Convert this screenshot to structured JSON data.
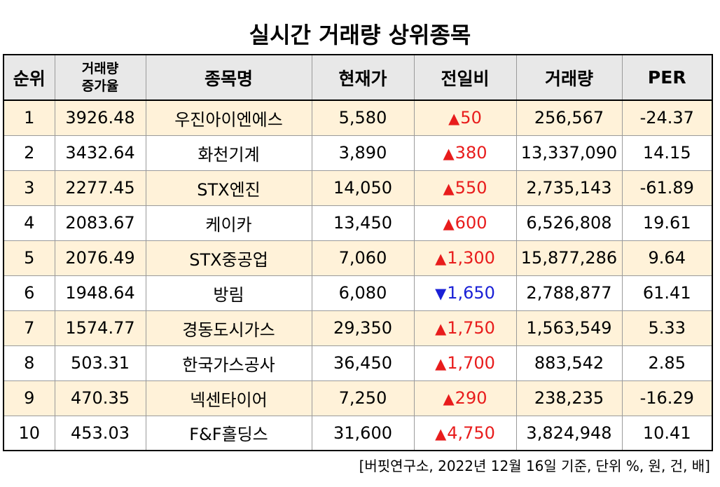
{
  "title": "실시간 거래량 상위종목",
  "headers": {
    "rank": "순위",
    "vol_increase_1": "거래량",
    "vol_increase_2": "증가율",
    "name": "종목명",
    "price": "현재가",
    "change": "전일비",
    "volume": "거래량",
    "per": "PER"
  },
  "rows": [
    {
      "rank": "1",
      "increase": "3926.48",
      "name": "우진아이엔에스",
      "price": "5,580",
      "dir": "up",
      "arrow": "▲",
      "change": "50",
      "volume": "256,567",
      "per": "-24.37"
    },
    {
      "rank": "2",
      "increase": "3432.64",
      "name": "화천기계",
      "price": "3,890",
      "dir": "up",
      "arrow": "▲",
      "change": "380",
      "volume": "13,337,090",
      "per": "14.15"
    },
    {
      "rank": "3",
      "increase": "2277.45",
      "name": "STX엔진",
      "price": "14,050",
      "dir": "up",
      "arrow": "▲",
      "change": "550",
      "volume": "2,735,143",
      "per": "-61.89"
    },
    {
      "rank": "4",
      "increase": "2083.67",
      "name": "케이카",
      "price": "13,450",
      "dir": "up",
      "arrow": "▲",
      "change": "600",
      "volume": "6,526,808",
      "per": "19.61"
    },
    {
      "rank": "5",
      "increase": "2076.49",
      "name": "STX중공업",
      "price": "7,060",
      "dir": "up",
      "arrow": "▲",
      "change": "1,300",
      "volume": "15,877,286",
      "per": "9.64"
    },
    {
      "rank": "6",
      "increase": "1948.64",
      "name": "방림",
      "price": "6,080",
      "dir": "down",
      "arrow": "▼",
      "change": "1,650",
      "volume": "2,788,877",
      "per": "61.41"
    },
    {
      "rank": "7",
      "increase": "1574.77",
      "name": "경동도시가스",
      "price": "29,350",
      "dir": "up",
      "arrow": "▲",
      "change": "1,750",
      "volume": "1,563,549",
      "per": "5.33"
    },
    {
      "rank": "8",
      "increase": "503.31",
      "name": "한국가스공사",
      "price": "36,450",
      "dir": "up",
      "arrow": "▲",
      "change": "1,700",
      "volume": "883,542",
      "per": "2.85"
    },
    {
      "rank": "9",
      "increase": "470.35",
      "name": "넥센타이어",
      "price": "7,250",
      "dir": "up",
      "arrow": "▲",
      "change": "290",
      "volume": "238,235",
      "per": "-16.29"
    },
    {
      "rank": "10",
      "increase": "453.03",
      "name": "F&F홀딩스",
      "price": "31,600",
      "dir": "up",
      "arrow": "▲",
      "change": "4,750",
      "volume": "3,824,948",
      "per": "10.41"
    }
  ],
  "colors": {
    "up": "#e81c1c",
    "down": "#1a20d6",
    "odd_row": "#fff2d9",
    "header": "#e8e8e8"
  },
  "footnote": "[버핏연구소, 2022년 12월 16일 기준, 단위 %, 원, 건, 배]"
}
